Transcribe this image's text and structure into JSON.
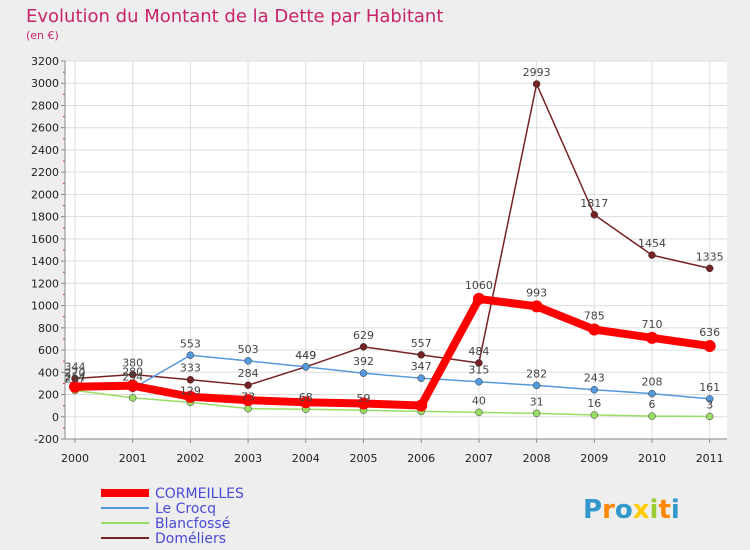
{
  "chart_data": {
    "type": "line",
    "title": "Evolution du Montant de la Dette par Habitant",
    "subtitle": "(en €)",
    "xlabel": "",
    "ylabel": "",
    "ylim": [
      -200,
      3200
    ],
    "yticks": [
      -200,
      0,
      200,
      400,
      600,
      800,
      1000,
      1200,
      1400,
      1600,
      1800,
      2000,
      2200,
      2400,
      2600,
      2800,
      3000,
      3200
    ],
    "categories": [
      "2000",
      "2001",
      "2002",
      "2003",
      "2004",
      "2005",
      "2006",
      "2007",
      "2008",
      "2009",
      "2010",
      "2011"
    ],
    "grid": true,
    "legend_position": "bottom-left",
    "series": [
      {
        "name": "CORMEILLES",
        "color": "#ff0000",
        "values": [
          270,
          280,
          180,
          150,
          130,
          119,
          101,
          1060,
          993,
          785,
          710,
          636
        ],
        "labels": [
          "270",
          "280",
          "",
          "",
          "",
          "",
          "",
          "1060",
          "993",
          "785",
          "710",
          "636"
        ]
      },
      {
        "name": "Le Crocq",
        "color": "#5599dd",
        "values": [
          254,
          254,
          553,
          503,
          449,
          392,
          347,
          315,
          282,
          243,
          208,
          161
        ],
        "labels": [
          "254",
          "254",
          "553",
          "503",
          "449",
          "392",
          "347",
          "315",
          "282",
          "243",
          "208",
          "161"
        ]
      },
      {
        "name": "Blancfossé",
        "color": "#99dd66",
        "values": [
          237,
          170,
          129,
          73,
          68,
          59,
          48,
          40,
          31,
          16,
          6,
          3
        ],
        "labels": [
          "237",
          "",
          "129",
          "73",
          "68",
          "59",
          "",
          "40",
          "31",
          "16",
          "6",
          "3"
        ]
      },
      {
        "name": "Doméliers",
        "color": "#772222",
        "values": [
          344,
          380,
          333,
          284,
          449,
          629,
          557,
          484,
          2993,
          1817,
          1454,
          1335
        ],
        "labels": [
          "344",
          "380",
          "333",
          "284",
          "449",
          "629",
          "557",
          "484",
          "2993",
          "1817",
          "1454",
          "1335"
        ]
      }
    ]
  },
  "logo": {
    "text": "Proxiti"
  }
}
